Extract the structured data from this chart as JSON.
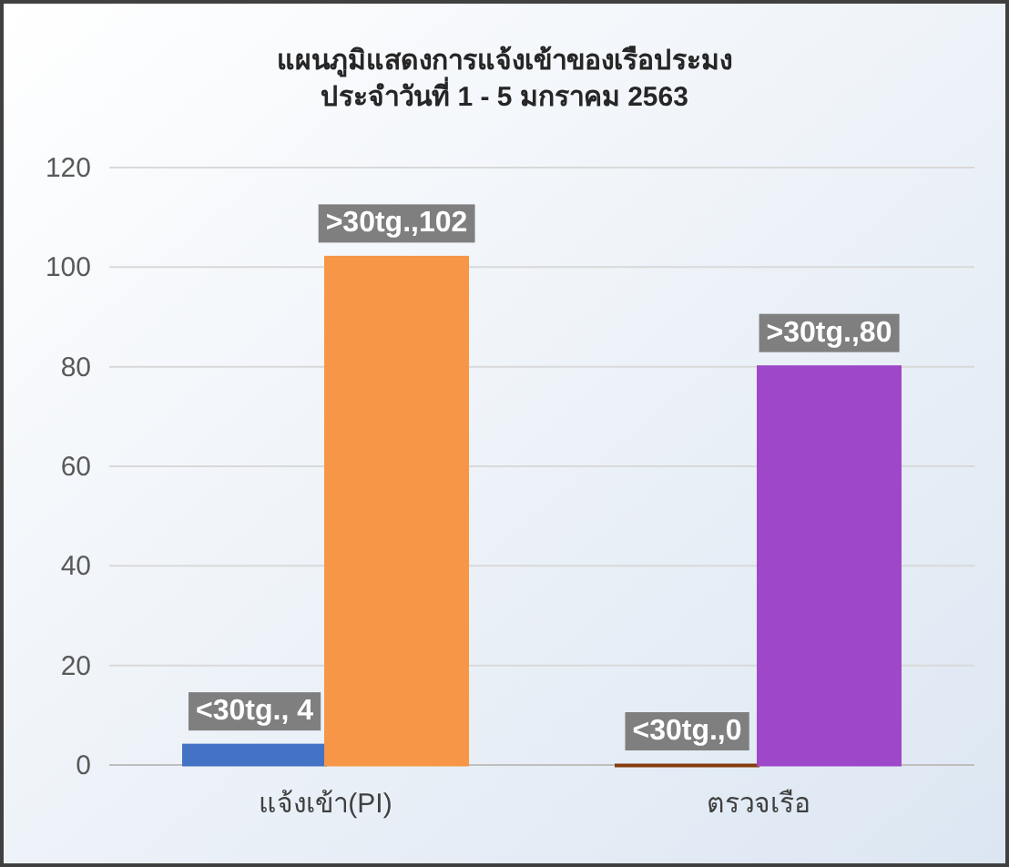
{
  "chart_data": {
    "type": "bar",
    "title": "แผนภูมิแสดงการแจ้งเข้าของเรือประมง\nประจำวันที่ 1 - 5  มกราคม  2563",
    "categories": [
      "แจ้งเข้า(PI)",
      "ตรวจเรือ"
    ],
    "series": [
      {
        "name": "<30tg.",
        "colors": [
          "#4472c4",
          "#843c0c"
        ],
        "values": [
          4,
          0
        ],
        "value_labels": [
          ", 4",
          ",0"
        ]
      },
      {
        "name": ">30tg.",
        "colors": [
          "#f79646",
          "#9e48c9"
        ],
        "values": [
          102,
          80
        ],
        "value_labels": [
          ",102",
          ",80"
        ]
      }
    ],
    "ylim": [
      0,
      120
    ],
    "yticks": [
      0,
      20,
      40,
      60,
      80,
      100,
      120
    ],
    "grid": "y"
  }
}
